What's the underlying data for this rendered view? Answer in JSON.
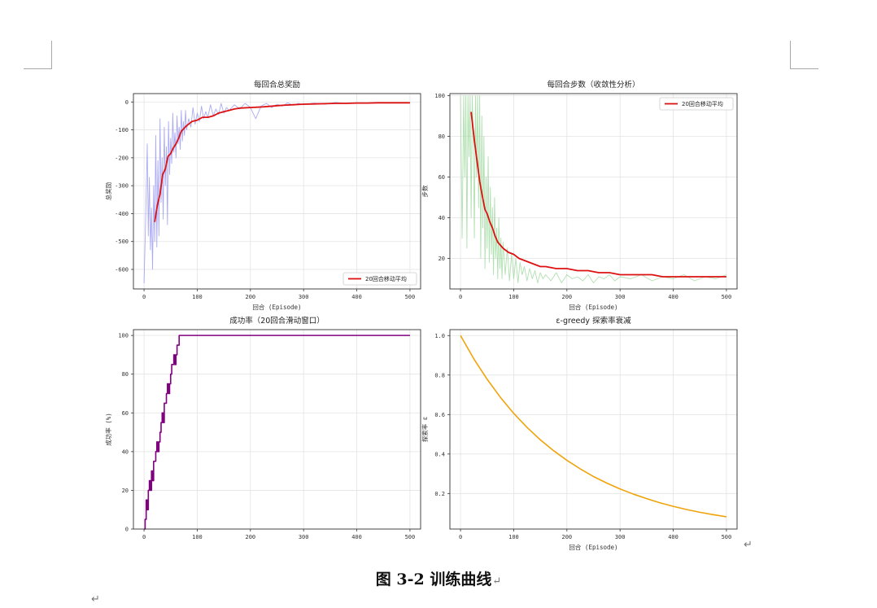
{
  "caption": "图 3-2 训练曲线",
  "colors": {
    "reward_raw": "#8f8ff0",
    "steps_raw": "#96d596",
    "moving_avg": "#dd1111",
    "success": "#800080",
    "epsilon": "#f0a30a",
    "grid": "#e3e3e3"
  },
  "chart_data": [
    {
      "type": "line",
      "title": "每回合总奖励",
      "xlabel": "回合 (Episode)",
      "ylabel": "总奖励",
      "xlim": [
        -20,
        520
      ],
      "ylim": [
        -670,
        30
      ],
      "xticks": [
        0,
        100,
        200,
        300,
        400,
        500
      ],
      "yticks": [
        0,
        -100,
        -200,
        -300,
        -400,
        -500,
        -600
      ],
      "grid": true,
      "legend": "bottom-right",
      "series": [
        {
          "name": "",
          "color": "#8f8ff0",
          "style": "raw",
          "x": [
            0,
            3,
            6,
            8,
            10,
            12,
            14,
            16,
            18,
            20,
            22,
            24,
            26,
            28,
            30,
            32,
            34,
            36,
            38,
            40,
            42,
            44,
            46,
            48,
            50,
            52,
            54,
            56,
            58,
            60,
            62,
            64,
            66,
            68,
            70,
            72,
            74,
            76,
            78,
            80,
            84,
            88,
            92,
            96,
            100,
            104,
            108,
            112,
            116,
            120,
            125,
            130,
            135,
            140,
            145,
            150,
            155,
            160,
            170,
            180,
            190,
            200,
            210,
            220,
            230,
            240,
            250,
            260,
            270,
            280,
            290,
            300,
            320,
            340,
            360,
            380,
            400,
            420,
            440,
            460,
            480,
            500
          ],
          "y": [
            -650,
            -420,
            -150,
            -480,
            -270,
            -530,
            -380,
            -600,
            -300,
            -500,
            -120,
            -520,
            -210,
            -480,
            -60,
            -360,
            -200,
            -420,
            -90,
            -300,
            -160,
            -440,
            -70,
            -260,
            -130,
            -220,
            -40,
            -180,
            -110,
            -200,
            -50,
            -150,
            -90,
            -170,
            -30,
            -140,
            -70,
            -120,
            -30,
            -100,
            -60,
            -90,
            -20,
            -80,
            -40,
            -70,
            -15,
            -60,
            -35,
            -55,
            -10,
            -50,
            -25,
            -45,
            -5,
            -40,
            -20,
            -30,
            -10,
            -25,
            -5,
            -20,
            -60,
            -15,
            -5,
            -20,
            -8,
            -15,
            -3,
            -12,
            -5,
            -10,
            -4,
            -8,
            -2,
            -6,
            -3,
            -5,
            -2,
            -4,
            -2,
            -3
          ]
        },
        {
          "name": "20回合移动平均",
          "color": "#dd1111",
          "style": "avg",
          "x": [
            20,
            25,
            30,
            35,
            40,
            45,
            50,
            55,
            60,
            65,
            70,
            75,
            80,
            90,
            100,
            110,
            120,
            130,
            140,
            150,
            160,
            170,
            180,
            200,
            220,
            240,
            260,
            280,
            300,
            320,
            340,
            360,
            380,
            400,
            420,
            440,
            460,
            480,
            500
          ],
          "y": [
            -430,
            -370,
            -330,
            -260,
            -240,
            -195,
            -185,
            -165,
            -150,
            -130,
            -105,
            -95,
            -85,
            -70,
            -65,
            -55,
            -55,
            -50,
            -40,
            -35,
            -30,
            -25,
            -22,
            -20,
            -18,
            -15,
            -12,
            -10,
            -8,
            -7,
            -6,
            -5,
            -5,
            -4,
            -4,
            -3,
            -3,
            -3,
            -3
          ]
        }
      ]
    },
    {
      "type": "line",
      "title": "每回合步数（收敛性分析）",
      "xlabel": "回合 (Episode)",
      "ylabel": "步数",
      "xlim": [
        -20,
        520
      ],
      "ylim": [
        5,
        101
      ],
      "xticks": [
        0,
        100,
        200,
        300,
        400,
        500
      ],
      "yticks": [
        20,
        40,
        60,
        80,
        100
      ],
      "grid": true,
      "legend": "top-right",
      "series": [
        {
          "name": "",
          "color": "#96d596",
          "style": "raw",
          "x": [
            0,
            3,
            6,
            8,
            10,
            12,
            14,
            16,
            18,
            20,
            22,
            24,
            26,
            28,
            30,
            32,
            34,
            36,
            38,
            40,
            42,
            44,
            46,
            48,
            50,
            52,
            54,
            56,
            58,
            60,
            62,
            64,
            66,
            68,
            70,
            72,
            74,
            76,
            78,
            80,
            84,
            88,
            92,
            96,
            100,
            104,
            108,
            112,
            116,
            120,
            125,
            130,
            135,
            140,
            145,
            150,
            155,
            160,
            170,
            180,
            190,
            200,
            210,
            220,
            230,
            240,
            250,
            260,
            270,
            280,
            290,
            300,
            320,
            340,
            360,
            380,
            400,
            420,
            440,
            460,
            480,
            500
          ],
          "y": [
            100,
            30,
            100,
            60,
            100,
            25,
            100,
            70,
            100,
            40,
            100,
            80,
            30,
            100,
            60,
            100,
            45,
            100,
            20,
            90,
            35,
            80,
            15,
            60,
            25,
            70,
            18,
            55,
            22,
            45,
            12,
            50,
            20,
            35,
            10,
            40,
            15,
            30,
            10,
            28,
            12,
            25,
            9,
            22,
            10,
            20,
            8,
            18,
            12,
            16,
            9,
            15,
            10,
            14,
            8,
            13,
            10,
            12,
            9,
            13,
            8,
            12,
            10,
            11,
            9,
            12,
            8,
            11,
            10,
            12,
            9,
            11,
            10,
            12,
            9,
            11,
            10,
            12,
            9,
            11,
            10,
            12
          ]
        },
        {
          "name": "20回合移动平均",
          "color": "#dd1111",
          "style": "avg",
          "x": [
            20,
            23,
            26,
            30,
            33,
            36,
            40,
            43,
            46,
            50,
            55,
            60,
            65,
            70,
            80,
            90,
            100,
            110,
            120,
            130,
            140,
            150,
            160,
            180,
            200,
            220,
            240,
            260,
            280,
            300,
            320,
            340,
            360,
            380,
            400,
            420,
            440,
            460,
            480,
            500
          ],
          "y": [
            92,
            85,
            78,
            70,
            64,
            58,
            52,
            48,
            44,
            42,
            38,
            35,
            31,
            28,
            25,
            23,
            22,
            20,
            19,
            18,
            17,
            16,
            16,
            15,
            15,
            14,
            14,
            13,
            13,
            12,
            12,
            12,
            12,
            11,
            11,
            11,
            11,
            11,
            11,
            11
          ]
        }
      ]
    },
    {
      "type": "line",
      "title": "成功率（20回合滑动窗口）",
      "xlabel": "",
      "ylabel": "成功率 (%)",
      "xlim": [
        -20,
        520
      ],
      "ylim": [
        0,
        103
      ],
      "xticks": [
        0,
        100,
        200,
        300,
        400,
        500
      ],
      "yticks": [
        0,
        20,
        40,
        60,
        80,
        100
      ],
      "grid": true,
      "series": [
        {
          "name": "",
          "color": "#800080",
          "style": "step",
          "x": [
            0,
            2,
            4,
            6,
            8,
            10,
            12,
            14,
            16,
            18,
            20,
            22,
            24,
            26,
            28,
            30,
            32,
            34,
            36,
            38,
            40,
            42,
            44,
            46,
            48,
            50,
            52,
            54,
            56,
            58,
            60,
            62,
            64,
            66,
            68,
            70,
            72,
            74,
            76,
            78,
            500
          ],
          "y": [
            0,
            5,
            15,
            10,
            20,
            25,
            20,
            30,
            25,
            35,
            35,
            40,
            45,
            40,
            45,
            50,
            55,
            60,
            55,
            65,
            65,
            70,
            75,
            70,
            75,
            80,
            85,
            85,
            90,
            85,
            90,
            95,
            95,
            100,
            100,
            100,
            100,
            100,
            100,
            100,
            100
          ]
        }
      ]
    },
    {
      "type": "line",
      "title": "ε-greedy 探索率衰减",
      "xlabel": "回合 (Episode)",
      "ylabel": "探索率 ε",
      "xlim": [
        -20,
        520
      ],
      "ylim": [
        0.02,
        1.03
      ],
      "xticks": [
        0,
        100,
        200,
        300,
        400,
        500
      ],
      "yticks": [
        0.2,
        0.4,
        0.6,
        0.8,
        1.0
      ],
      "grid": true,
      "series": [
        {
          "name": "",
          "color": "#f0a30a",
          "style": "curve",
          "x": [
            0,
            25,
            50,
            75,
            100,
            125,
            150,
            175,
            200,
            225,
            250,
            275,
            300,
            325,
            350,
            375,
            400,
            425,
            450,
            475,
            500
          ],
          "y": [
            1.0,
            0.882,
            0.779,
            0.687,
            0.606,
            0.535,
            0.472,
            0.417,
            0.368,
            0.325,
            0.286,
            0.253,
            0.223,
            0.197,
            0.174,
            0.153,
            0.135,
            0.119,
            0.105,
            0.093,
            0.082
          ]
        }
      ]
    }
  ]
}
